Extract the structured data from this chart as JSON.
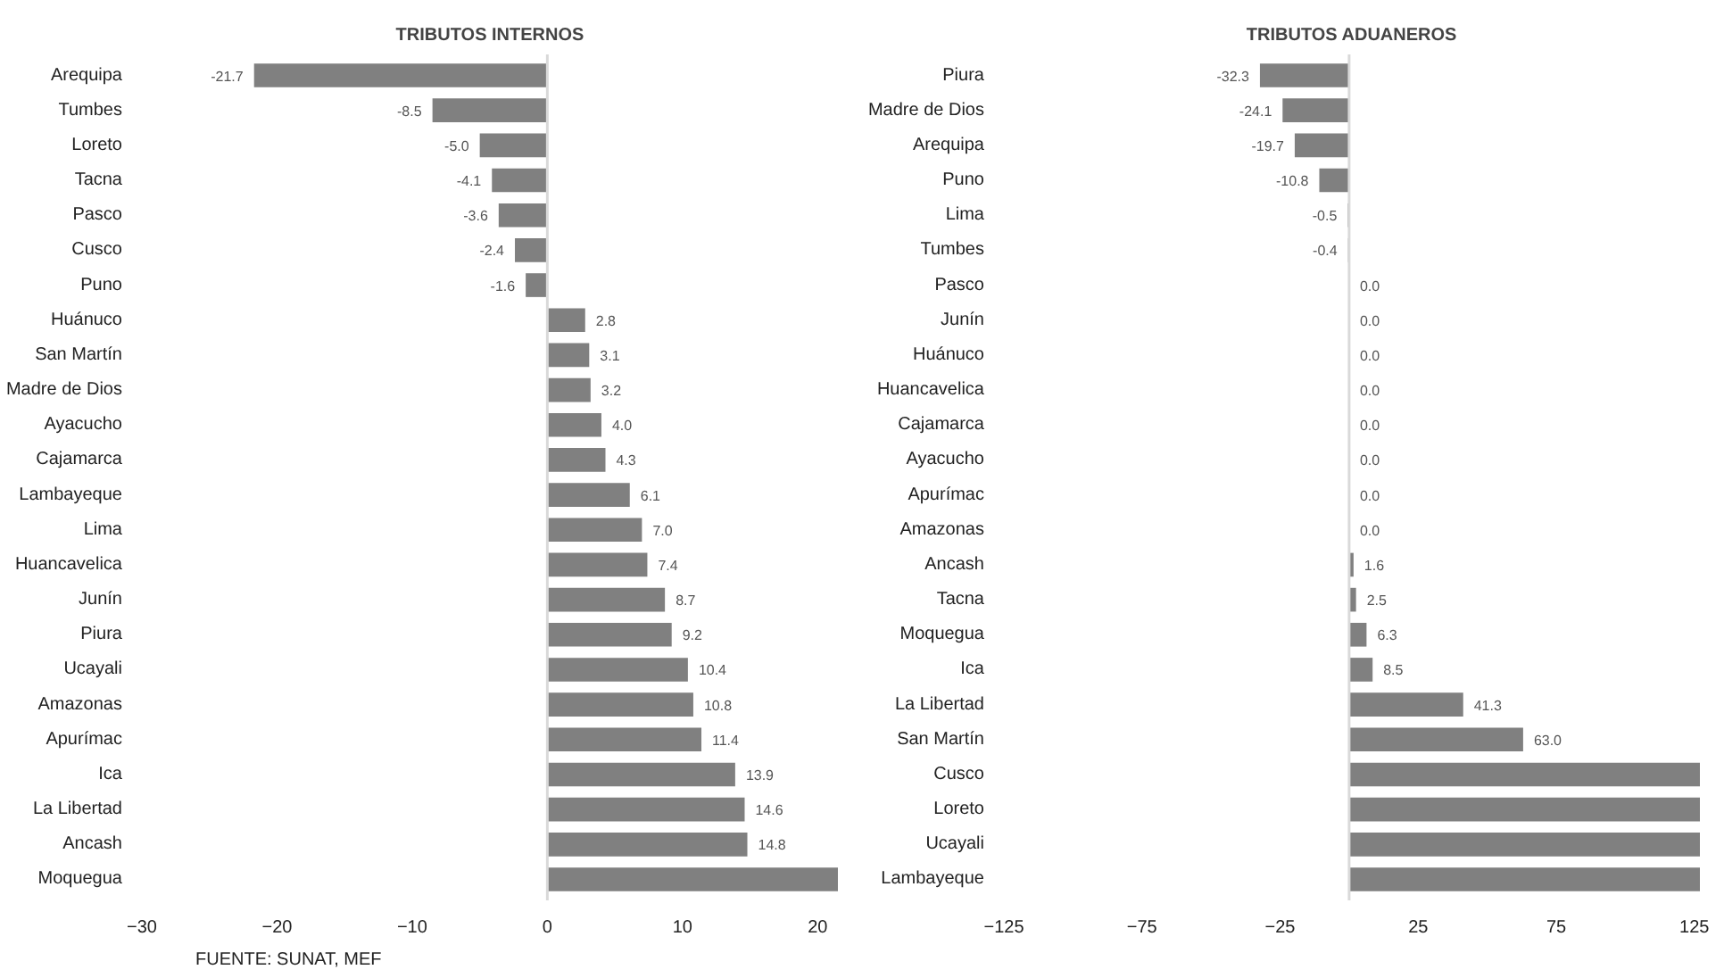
{
  "chart_data": [
    {
      "type": "bar",
      "orientation": "horizontal",
      "title": "TRIBUTOS INTERNOS",
      "categories": [
        "Arequipa",
        "Tumbes",
        "Loreto",
        "Tacna",
        "Pasco",
        "Cusco",
        "Puno",
        "Huánuco",
        "San Martín",
        "Madre de Dios",
        "Ayacucho",
        "Cajamarca",
        "Lambayeque",
        "Lima",
        "Huancavelica",
        "Junín",
        "Piura",
        "Ucayali",
        "Amazonas",
        "Apurímac",
        "Ica",
        "La Libertad",
        "Ancash",
        "Moquegua"
      ],
      "values": [
        -21.7,
        -8.5,
        -5.0,
        -4.1,
        -3.6,
        -2.4,
        -1.6,
        2.8,
        3.1,
        3.2,
        4.0,
        4.3,
        6.1,
        7.0,
        7.4,
        8.7,
        9.2,
        10.4,
        10.8,
        11.4,
        13.9,
        14.6,
        14.8,
        21.5
      ],
      "value_labels": [
        "-21.7",
        "-8.5",
        "-5.0",
        "-4.1",
        "-3.6",
        "-2.4",
        "-1.6",
        "2.8",
        "3.1",
        "3.2",
        "4.0",
        "4.3",
        "6.1",
        "7.0",
        "7.4",
        "8.7",
        "9.2",
        "10.4",
        "10.8",
        "11.4",
        "13.9",
        "14.6",
        "14.8",
        null
      ],
      "color": "#808080",
      "xlim": [
        -30,
        21.5
      ],
      "xticks": [
        -30,
        -20,
        -10,
        0,
        10,
        20
      ],
      "ref_lines": [
        {
          "axis": "x",
          "value": 0,
          "color": "#d9d9d9"
        }
      ],
      "annotations": [
        "FUENTE: SUNAT, MEF"
      ]
    },
    {
      "type": "bar",
      "orientation": "horizontal",
      "title": "TRIBUTOS ADUANEROS",
      "categories": [
        "Piura",
        "Madre de Dios",
        "Arequipa",
        "Puno",
        "Lima",
        "Tumbes",
        "Pasco",
        "Junín",
        "Huánuco",
        "Huancavelica",
        "Cajamarca",
        "Ayacucho",
        "Apurímac",
        "Amazonas",
        "Ancash",
        "Tacna",
        "Moquegua",
        "Ica",
        "La Libertad",
        "San Martín",
        "Cusco",
        "Loreto",
        "Ucayali",
        "Lambayeque"
      ],
      "values": [
        -32.3,
        -24.1,
        -19.7,
        -10.8,
        -0.5,
        -0.4,
        0.0,
        0.0,
        0.0,
        0.0,
        0.0,
        0.0,
        0.0,
        0.0,
        1.6,
        2.5,
        6.3,
        8.5,
        41.3,
        63.0,
        127,
        127,
        127,
        127
      ],
      "value_labels": [
        "-32.3",
        "-24.1",
        "-19.7",
        "-10.8",
        "-0.5",
        "-0.4",
        "0.0",
        "0.0",
        "0.0",
        "0.0",
        "0.0",
        "0.0",
        "0.0",
        "0.0",
        "1.6",
        "2.5",
        "6.3",
        "8.5",
        "41.3",
        "63.0",
        null,
        null,
        null,
        null
      ],
      "color": "#808080",
      "xlim": [
        -125,
        127
      ],
      "xticks": [
        -125,
        -75,
        -25,
        25,
        75,
        125
      ],
      "ref_lines": [
        {
          "axis": "x",
          "value": 0,
          "color": "#d9d9d9"
        }
      ]
    }
  ]
}
